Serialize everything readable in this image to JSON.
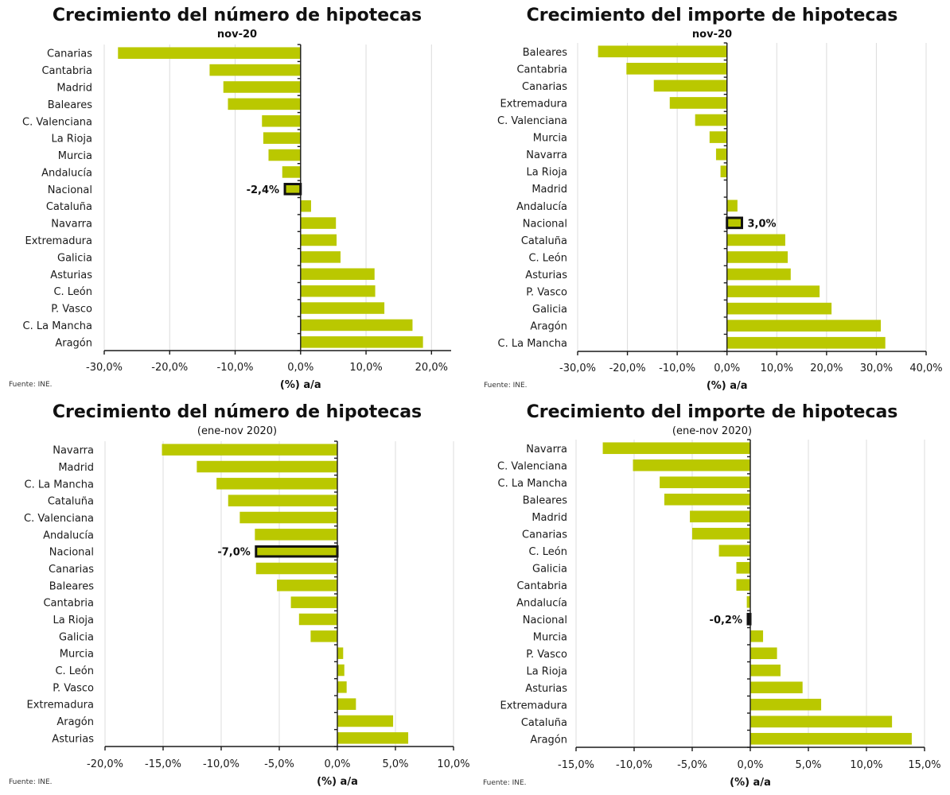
{
  "colors": {
    "bar": "#bac800",
    "highlight_border": "#111111",
    "grid": "#dcdcdc",
    "axis": "#1a1a1a"
  },
  "chart_data": [
    {
      "type": "bar",
      "orientation": "horizontal",
      "title": "Crecimiento del número de hipotecas",
      "subtitle": "nov-20",
      "subtitle_bold": true,
      "xlabel": "(%) a/a",
      "ylabel": "",
      "source": "Fuente: INE.",
      "xlim": [
        -30,
        23
      ],
      "xticks": [
        -30,
        -20,
        -10,
        0,
        10,
        20
      ],
      "xtick_labels": [
        "-30,0%",
        "-20,0%",
        "-10,0%",
        "0,0%",
        "10,0%",
        "20,0%"
      ],
      "grid": true,
      "highlight": {
        "category": "Nacional",
        "label": "-2,4%"
      },
      "categories": [
        "Canarias",
        "Cantabria",
        "Madrid",
        "Baleares",
        "C. Valenciana",
        "La Rioja",
        "Murcia",
        "Andalucía",
        "Nacional",
        "Cataluña",
        "Navarra",
        "Extremadura",
        "Galicia",
        "Asturias",
        "C. León",
        "P. Vasco",
        "C. La Mancha",
        "Aragón"
      ],
      "values": [
        -27.9,
        -13.9,
        -11.8,
        -11.1,
        -5.9,
        -5.7,
        -4.9,
        -2.8,
        -2.4,
        1.6,
        5.4,
        5.5,
        6.1,
        11.3,
        11.4,
        12.8,
        17.1,
        18.7
      ]
    },
    {
      "type": "bar",
      "orientation": "horizontal",
      "title": "Crecimiento del importe de hipotecas",
      "subtitle": "nov-20",
      "subtitle_bold": true,
      "xlabel": "(%) a/a",
      "ylabel": "",
      "source": "Fuente: INE.",
      "xlim": [
        -30,
        40
      ],
      "xticks": [
        -30,
        -20,
        -10,
        0,
        10,
        20,
        30,
        40
      ],
      "xtick_labels": [
        "-30,0%",
        "-20,0%",
        "-10,0%",
        "0,0%",
        "10,0%",
        "20,0%",
        "30,0%",
        "40,0%"
      ],
      "grid": true,
      "highlight": {
        "category": "Nacional",
        "label": "3,0%"
      },
      "categories": [
        "Baleares",
        "Cantabria",
        "Canarias",
        "Extremadura",
        "C. Valenciana",
        "Murcia",
        "Navarra",
        "La Rioja",
        "Madrid",
        "Andalucía",
        "Nacional",
        "Cataluña",
        "C. León",
        "Asturias",
        "P. Vasco",
        "Galicia",
        "Aragón",
        "C. La Mancha"
      ],
      "values": [
        -25.9,
        -20.2,
        -14.7,
        -11.5,
        -6.4,
        -3.5,
        -2.2,
        -1.3,
        0.0,
        2.1,
        3.0,
        11.7,
        12.2,
        12.8,
        18.6,
        21.0,
        30.9,
        31.8
      ]
    },
    {
      "type": "bar",
      "orientation": "horizontal",
      "title": "Crecimiento del número de hipotecas",
      "subtitle": "(ene-nov 2020)",
      "subtitle_bold": false,
      "xlabel": "(%) a/a",
      "ylabel": "",
      "source": "Fuente: INE.",
      "xlim": [
        -20,
        10
      ],
      "xticks": [
        -20,
        -15,
        -10,
        -5,
        0,
        5,
        10
      ],
      "xtick_labels": [
        "-20,0%",
        "-15,0%",
        "-10,0%",
        "-5,0%",
        "0,0%",
        "5,0%",
        "10,0%"
      ],
      "grid": true,
      "highlight": {
        "category": "Nacional",
        "label": "-7,0%"
      },
      "categories": [
        "Navarra",
        "Madrid",
        "C. La Mancha",
        "Cataluña",
        "C. Valenciana",
        "Andalucía",
        "Nacional",
        "Canarias",
        "Baleares",
        "Cantabria",
        "La Rioja",
        "Galicia",
        "Murcia",
        "C. León",
        "P. Vasco",
        "Extremadura",
        "Aragón",
        "Asturias"
      ],
      "values": [
        -15.1,
        -12.1,
        -10.4,
        -9.4,
        -8.4,
        -7.1,
        -7.0,
        -7.0,
        -5.2,
        -4.0,
        -3.3,
        -2.3,
        0.5,
        0.6,
        0.8,
        1.6,
        4.8,
        6.1
      ]
    },
    {
      "type": "bar",
      "orientation": "horizontal",
      "title": "Crecimiento del importe de hipotecas",
      "subtitle": "(ene-nov 2020)",
      "subtitle_bold": false,
      "xlabel": "(%) a/a",
      "ylabel": "",
      "source": "Fuente: INE.",
      "xlim": [
        -15,
        15
      ],
      "xticks": [
        -15,
        -10,
        -5,
        0,
        5,
        10,
        15
      ],
      "xtick_labels": [
        "-15,0%",
        "-10,0%",
        "-5,0%",
        "0,0%",
        "5,0%",
        "10,0%",
        "15,0%"
      ],
      "grid": true,
      "highlight": {
        "category": "Nacional",
        "label": "-0,2%"
      },
      "categories": [
        "Navarra",
        "C. Valenciana",
        "C. La Mancha",
        "Baleares",
        "Madrid",
        "Canarias",
        "C. León",
        "Galicia",
        "Cantabria",
        "Andalucía",
        "Nacional",
        "Murcia",
        "P. Vasco",
        "La Rioja",
        "Asturias",
        "Extremadura",
        "Cataluña",
        "Aragón"
      ],
      "values": [
        -12.7,
        -10.1,
        -7.8,
        -7.4,
        -5.2,
        -5.0,
        -2.7,
        -1.2,
        -1.2,
        -0.3,
        -0.2,
        1.1,
        2.3,
        2.6,
        4.5,
        6.1,
        12.2,
        13.9
      ]
    }
  ]
}
